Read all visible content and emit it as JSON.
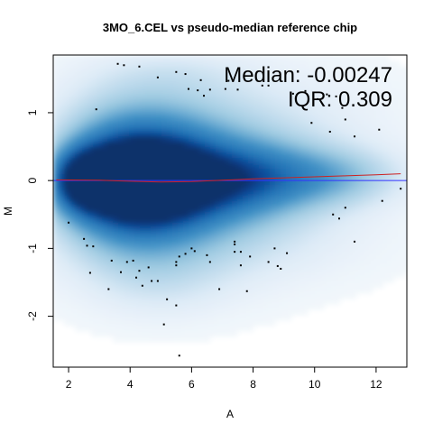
{
  "chart_data": {
    "type": "scatter",
    "subtype": "MA density plot (smoothScatter)",
    "title": "3MO_6.CEL vs pseudo-median reference chip",
    "xlabel": "A",
    "ylabel": "M",
    "xlim": [
      1.5,
      13.0
    ],
    "ylim": [
      -2.75,
      1.85
    ],
    "x_ticks": [
      2,
      4,
      6,
      8,
      10,
      12
    ],
    "x_tick_labels": [
      "2",
      "4",
      "6",
      "8",
      "10",
      "12"
    ],
    "y_ticks": [
      -2,
      -1,
      0,
      1
    ],
    "y_tick_labels": [
      "-2",
      "-1",
      "0",
      "1"
    ],
    "grid": false,
    "annotations": {
      "median_label": "Median: -0.00247",
      "iqr_label": "IQR: 0.309"
    },
    "reference_line": {
      "y": 0,
      "color": "#3333ff"
    },
    "loess_curve": {
      "color": "#cc2222",
      "x": [
        1.6,
        3.0,
        4.0,
        5.0,
        6.0,
        7.0,
        8.0,
        9.0,
        10.0,
        11.0,
        12.0,
        12.8
      ],
      "y": [
        0.01,
        0.005,
        -0.01,
        -0.02,
        -0.015,
        0.005,
        0.025,
        0.04,
        0.055,
        0.07,
        0.085,
        0.1
      ]
    },
    "density_color_low": "#f5f9fc",
    "density_color_high": "#08306b",
    "density_blobs": [
      {
        "x": 3.6,
        "y": 0.0,
        "sx": 1.1,
        "sy": 0.38,
        "w": 1.0
      },
      {
        "x": 5.0,
        "y": 0.0,
        "sx": 1.2,
        "sy": 0.42,
        "w": 0.85
      },
      {
        "x": 6.8,
        "y": 0.02,
        "sx": 1.5,
        "sy": 0.38,
        "w": 0.55
      },
      {
        "x": 8.8,
        "y": 0.05,
        "sx": 1.6,
        "sy": 0.32,
        "w": 0.35
      },
      {
        "x": 11.0,
        "y": 0.06,
        "sx": 1.4,
        "sy": 0.28,
        "w": 0.18
      },
      {
        "x": 2.4,
        "y": 0.0,
        "sx": 0.6,
        "sy": 0.28,
        "w": 0.7
      },
      {
        "x": 4.0,
        "y": 0.4,
        "sx": 1.6,
        "sy": 0.55,
        "w": 0.35
      },
      {
        "x": 4.0,
        "y": -0.4,
        "sx": 1.6,
        "sy": 0.55,
        "w": 0.35
      },
      {
        "x": 6.5,
        "y": 0.6,
        "sx": 2.2,
        "sy": 0.6,
        "w": 0.16
      },
      {
        "x": 6.5,
        "y": -0.6,
        "sx": 2.2,
        "sy": 0.6,
        "w": 0.16
      },
      {
        "x": 4.5,
        "y": 1.1,
        "sx": 2.0,
        "sy": 0.5,
        "w": 0.08
      },
      {
        "x": 4.5,
        "y": -1.1,
        "sx": 2.0,
        "sy": 0.5,
        "w": 0.08
      },
      {
        "x": 9.5,
        "y": 0.8,
        "sx": 2.5,
        "sy": 0.6,
        "w": 0.06
      },
      {
        "x": 9.0,
        "y": -0.7,
        "sx": 2.5,
        "sy": 0.5,
        "w": 0.06
      },
      {
        "x": 5.0,
        "y": -1.6,
        "sx": 1.5,
        "sy": 0.35,
        "w": 0.05
      },
      {
        "x": 5.5,
        "y": 1.6,
        "sx": 1.8,
        "sy": 0.2,
        "w": 0.05
      }
    ],
    "outlier_points": [
      [
        3.6,
        1.72
      ],
      [
        3.8,
        1.7
      ],
      [
        4.3,
        1.68
      ],
      [
        5.5,
        1.6
      ],
      [
        5.8,
        1.57
      ],
      [
        4.9,
        1.52
      ],
      [
        6.3,
        1.48
      ],
      [
        5.9,
        1.35
      ],
      [
        6.2,
        1.33
      ],
      [
        6.6,
        1.34
      ],
      [
        7.1,
        1.35
      ],
      [
        7.5,
        1.34
      ],
      [
        7.2,
        1.47
      ],
      [
        8.3,
        1.4
      ],
      [
        8.5,
        1.4
      ],
      [
        9.3,
        1.28
      ],
      [
        9.7,
        1.32
      ],
      [
        10.1,
        1.2
      ],
      [
        10.4,
        1.27
      ],
      [
        10.7,
        1.24
      ],
      [
        10.9,
        1.07
      ],
      [
        9.9,
        0.85
      ],
      [
        11.0,
        0.9
      ],
      [
        11.3,
        0.65
      ],
      [
        12.1,
        0.75
      ],
      [
        10.5,
        0.72
      ],
      [
        2.9,
        1.05
      ],
      [
        6.4,
        1.25
      ],
      [
        11.0,
        -0.4
      ],
      [
        10.8,
        -0.56
      ],
      [
        10.6,
        -0.5
      ],
      [
        12.2,
        -0.3
      ],
      [
        12.8,
        -0.12
      ],
      [
        11.3,
        -0.9
      ],
      [
        2.0,
        -0.62
      ],
      [
        2.5,
        -0.86
      ],
      [
        2.6,
        -0.96
      ],
      [
        2.8,
        -0.97
      ],
      [
        2.7,
        -1.36
      ],
      [
        3.4,
        -1.18
      ],
      [
        4.1,
        -1.18
      ],
      [
        3.9,
        -1.2
      ],
      [
        3.7,
        -1.35
      ],
      [
        4.3,
        -1.33
      ],
      [
        4.2,
        -1.43
      ],
      [
        4.6,
        -1.28
      ],
      [
        4.7,
        -1.48
      ],
      [
        4.4,
        -1.55
      ],
      [
        3.3,
        -1.6
      ],
      [
        4.9,
        -1.48
      ],
      [
        5.5,
        -1.2
      ],
      [
        5.5,
        -1.25
      ],
      [
        5.6,
        -1.12
      ],
      [
        5.8,
        -1.08
      ],
      [
        6.0,
        -1.0
      ],
      [
        6.1,
        -1.04
      ],
      [
        6.5,
        -1.1
      ],
      [
        6.6,
        -1.2
      ],
      [
        7.4,
        -0.9
      ],
      [
        7.4,
        -0.94
      ],
      [
        7.4,
        -1.05
      ],
      [
        7.6,
        -1.05
      ],
      [
        7.9,
        -1.12
      ],
      [
        8.5,
        -1.2
      ],
      [
        8.7,
        -1.0
      ],
      [
        8.8,
        -1.26
      ],
      [
        8.9,
        -1.3
      ],
      [
        9.1,
        -1.07
      ],
      [
        7.6,
        -1.25
      ],
      [
        7.8,
        -1.63
      ],
      [
        6.9,
        -1.6
      ],
      [
        5.2,
        -1.75
      ],
      [
        5.5,
        -1.84
      ],
      [
        5.1,
        -2.12
      ],
      [
        5.6,
        -2.58
      ]
    ]
  }
}
